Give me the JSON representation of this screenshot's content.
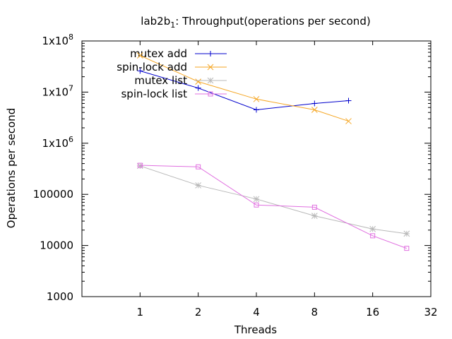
{
  "chart_data": {
    "type": "line",
    "title_prefix": "lab2b",
    "title_sub": "1",
    "title_suffix": ": Throughput(operations per second)",
    "xlabel": "Threads",
    "ylabel": "Operations per second",
    "x_scale": "log2",
    "y_scale": "log10",
    "xlim": [
      0.5,
      32
    ],
    "ylim": [
      1000,
      100000000
    ],
    "x_ticks": [
      {
        "value": 1,
        "label": "1"
      },
      {
        "value": 2,
        "label": "2"
      },
      {
        "value": 4,
        "label": "4"
      },
      {
        "value": 8,
        "label": "8"
      },
      {
        "value": 16,
        "label": "16"
      },
      {
        "value": 32,
        "label": "32"
      }
    ],
    "y_ticks": [
      {
        "value": 1000,
        "label": "1000",
        "sup": ""
      },
      {
        "value": 10000,
        "label": "10000",
        "sup": ""
      },
      {
        "value": 100000,
        "label": "100000",
        "sup": ""
      },
      {
        "value": 1000000,
        "label": "1x10",
        "sup": "6"
      },
      {
        "value": 10000000,
        "label": "1x10",
        "sup": "7"
      },
      {
        "value": 100000000,
        "label": "1x10",
        "sup": "8"
      }
    ],
    "grid": false,
    "legend_position": "top-left",
    "series": [
      {
        "name": "mutex add",
        "color": "#0000cc",
        "marker": "plus",
        "x": [
          1,
          2,
          4,
          8,
          12
        ],
        "y": [
          26000000,
          12000000,
          4500000,
          6000000,
          6800000
        ]
      },
      {
        "name": "spin-lock add",
        "color": "#f5a623",
        "marker": "cross",
        "x": [
          1,
          2,
          4,
          8,
          12
        ],
        "y": [
          52000000,
          16000000,
          7300000,
          4500000,
          2700000
        ]
      },
      {
        "name": "mutex list",
        "color": "#b8b8b8",
        "marker": "star",
        "x": [
          1,
          2,
          4,
          8,
          16,
          24
        ],
        "y": [
          360000,
          150000,
          81000,
          38000,
          21000,
          17000
        ]
      },
      {
        "name": "spin-lock list",
        "color": "#e070e0",
        "marker": "square",
        "x": [
          1,
          2,
          4,
          8,
          16,
          24
        ],
        "y": [
          370000,
          345000,
          62000,
          56000,
          15500,
          8800
        ]
      }
    ]
  }
}
